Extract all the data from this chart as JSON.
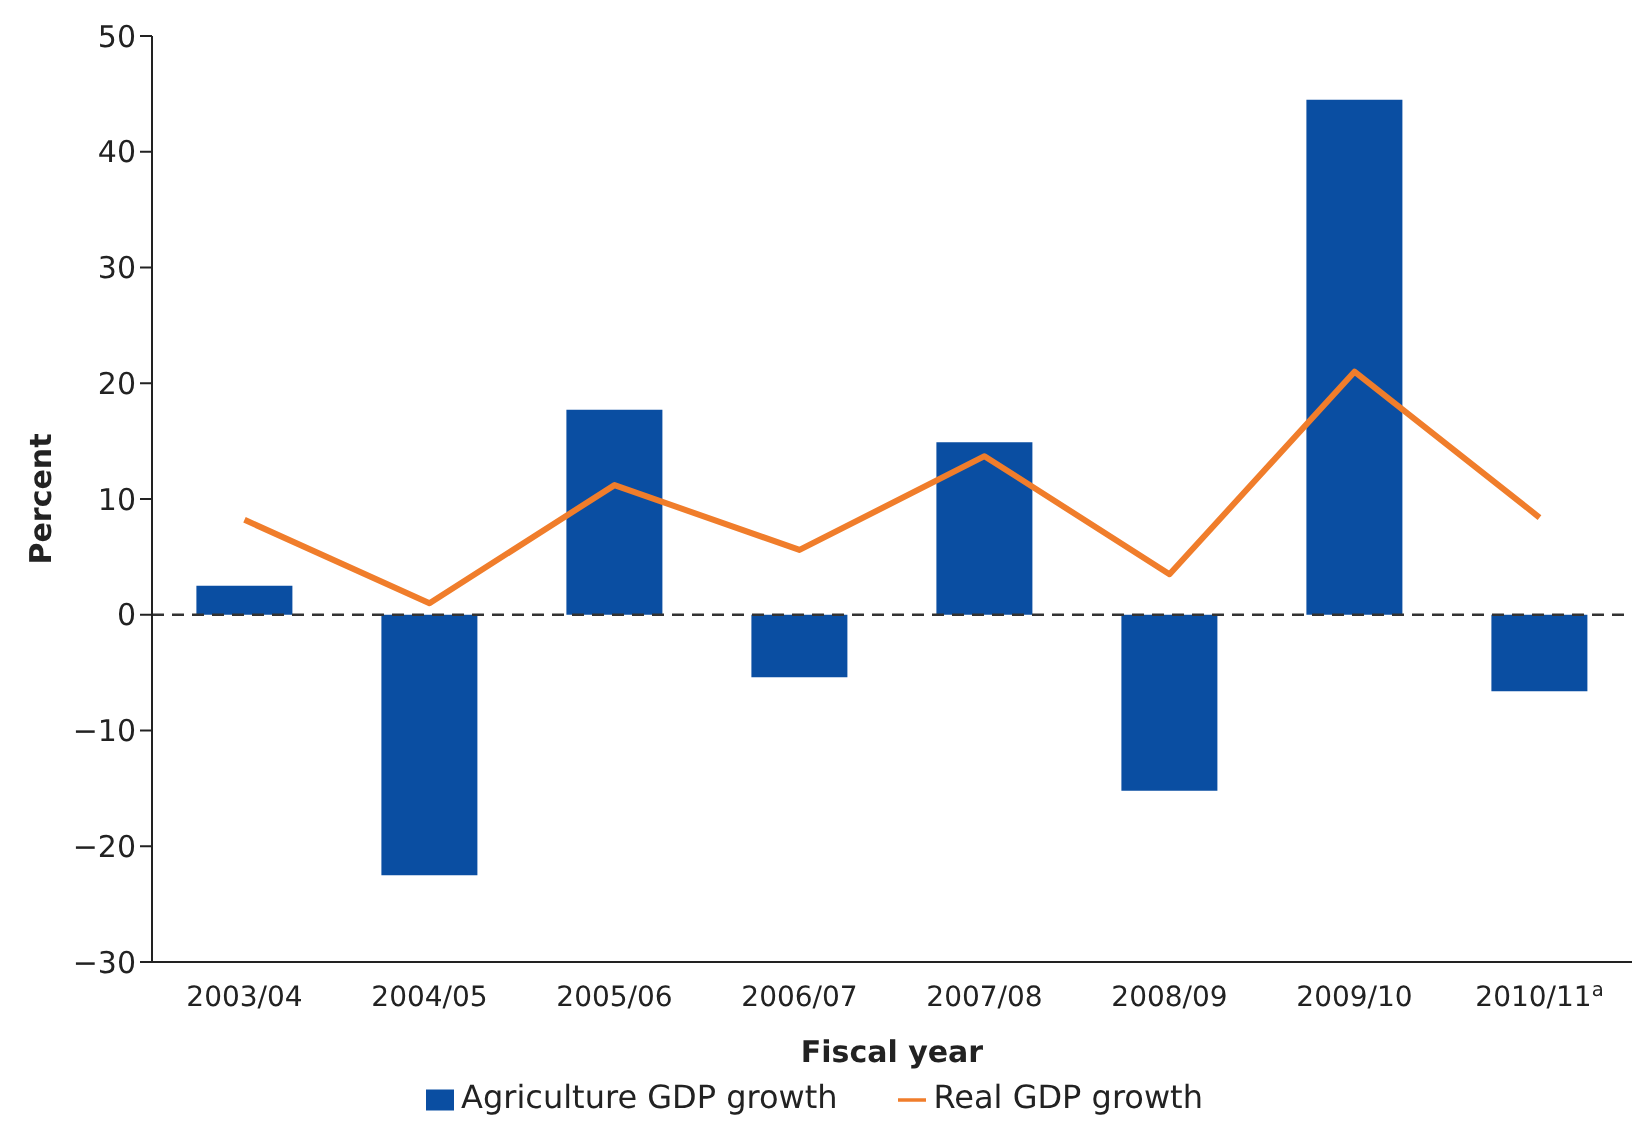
{
  "chart_data": {
    "type": "bar",
    "xlabel": "Fiscal year",
    "ylabel": "Percent",
    "categories": [
      "2003/04",
      "2004/05",
      "2005/06",
      "2006/07",
      "2007/08",
      "2008/09",
      "2009/10",
      "2010/11$^{a}$"
    ],
    "series": [
      {
        "name": "Agriculture GDP growth",
        "color": "#0a4ea2",
        "values": [
          2.5,
          -22.5,
          17.7,
          -5.4,
          14.9,
          -15.2,
          44.5,
          -6.6
        ]
      },
      {
        "name": "Real GDP growth",
        "type": "line",
        "color": "#f07d2b",
        "values": [
          8.2,
          1.0,
          11.2,
          5.6,
          13.7,
          3.5,
          21.0,
          8.4
        ]
      }
    ],
    "ylim": [
      -30,
      50
    ],
    "yticks": [
      -30,
      -20,
      -10,
      0,
      10,
      20,
      30,
      40,
      50
    ],
    "ref_lines": [
      {
        "axis": "y",
        "value": 0,
        "line_style": "dashed",
        "color": "#333333"
      }
    ],
    "grid": false,
    "legend": "bottom",
    "marker": "none",
    "line_style": "solid"
  }
}
